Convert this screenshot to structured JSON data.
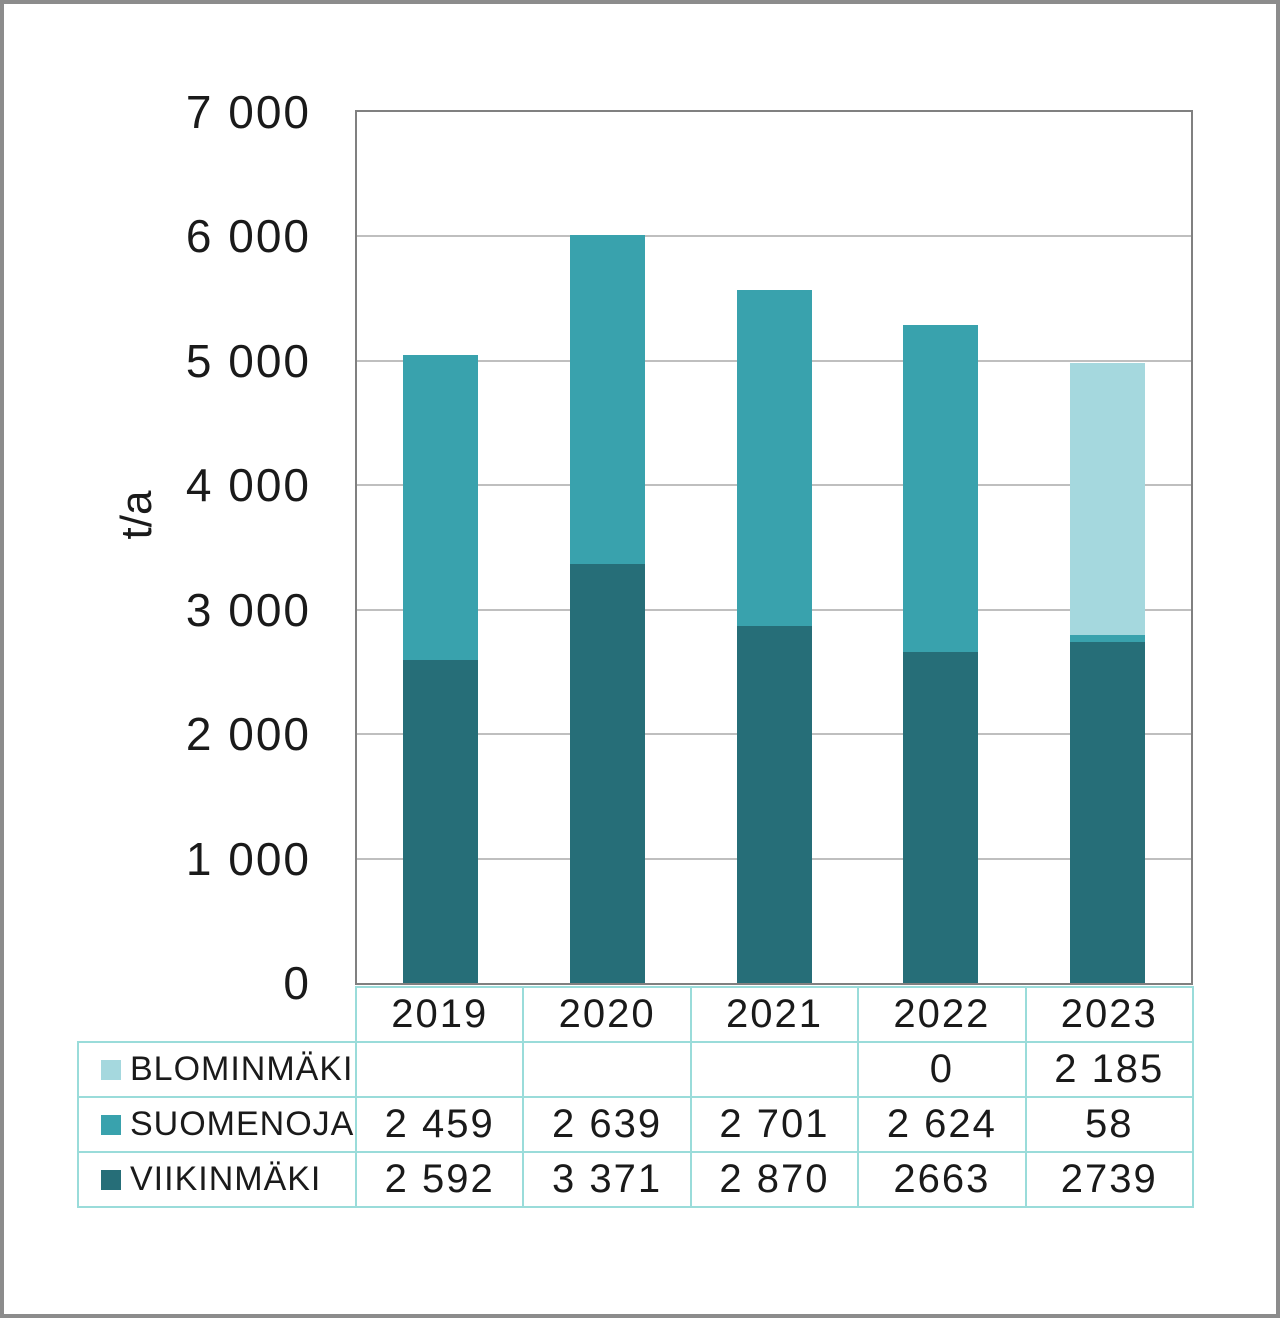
{
  "figure": {
    "background": "#ffffff",
    "frame_border_color": "#8c8c8c"
  },
  "chart_data": {
    "type": "bar",
    "stacked": true,
    "title": "",
    "categories": [
      "2019",
      "2020",
      "2021",
      "2022",
      "2023"
    ],
    "series": [
      {
        "name": "VIIKINMÄKI",
        "color": "#266e78",
        "values": [
          2592,
          3371,
          2870,
          2663,
          2739
        ]
      },
      {
        "name": "SUOMENOJA",
        "color": "#39a2ad",
        "values": [
          2459,
          2639,
          2701,
          2624,
          58
        ]
      },
      {
        "name": "BLOMINMÄKI",
        "color": "#a5d8de",
        "values": [
          0,
          0,
          0,
          0,
          2185
        ]
      }
    ],
    "totals": [
      5051,
      6010,
      5571,
      5287,
      4982
    ],
    "xlabel": "",
    "ylabel": "t/a",
    "ylim": [
      0,
      7000
    ],
    "ytick_interval": 1000,
    "yticks": [
      "7 000",
      "6 000",
      "5 000",
      "4 000",
      "3 000",
      "2 000",
      "1 000",
      "0"
    ],
    "grid": true,
    "gridline_color": "#bfbfbf",
    "axis_color": "#808080",
    "legend_position": "table-below-left"
  },
  "data_table": {
    "border_color": "#9adcda",
    "header": [
      "2019",
      "2020",
      "2021",
      "2022",
      "2023"
    ],
    "rows": [
      {
        "label": "BLOMINMÄKI",
        "swatch_color": "#a5d8de",
        "cells": [
          "",
          "",
          "",
          "0",
          "2 185"
        ]
      },
      {
        "label": "SUOMENOJA",
        "swatch_color": "#39a2ad",
        "cells": [
          "2 459",
          "2 639",
          "2 701",
          "2 624",
          "58"
        ]
      },
      {
        "label": "VIIKINMÄKI",
        "swatch_color": "#266e78",
        "cells": [
          "2 592",
          "3 371",
          "2 870",
          "2663",
          "2739"
        ]
      }
    ]
  }
}
